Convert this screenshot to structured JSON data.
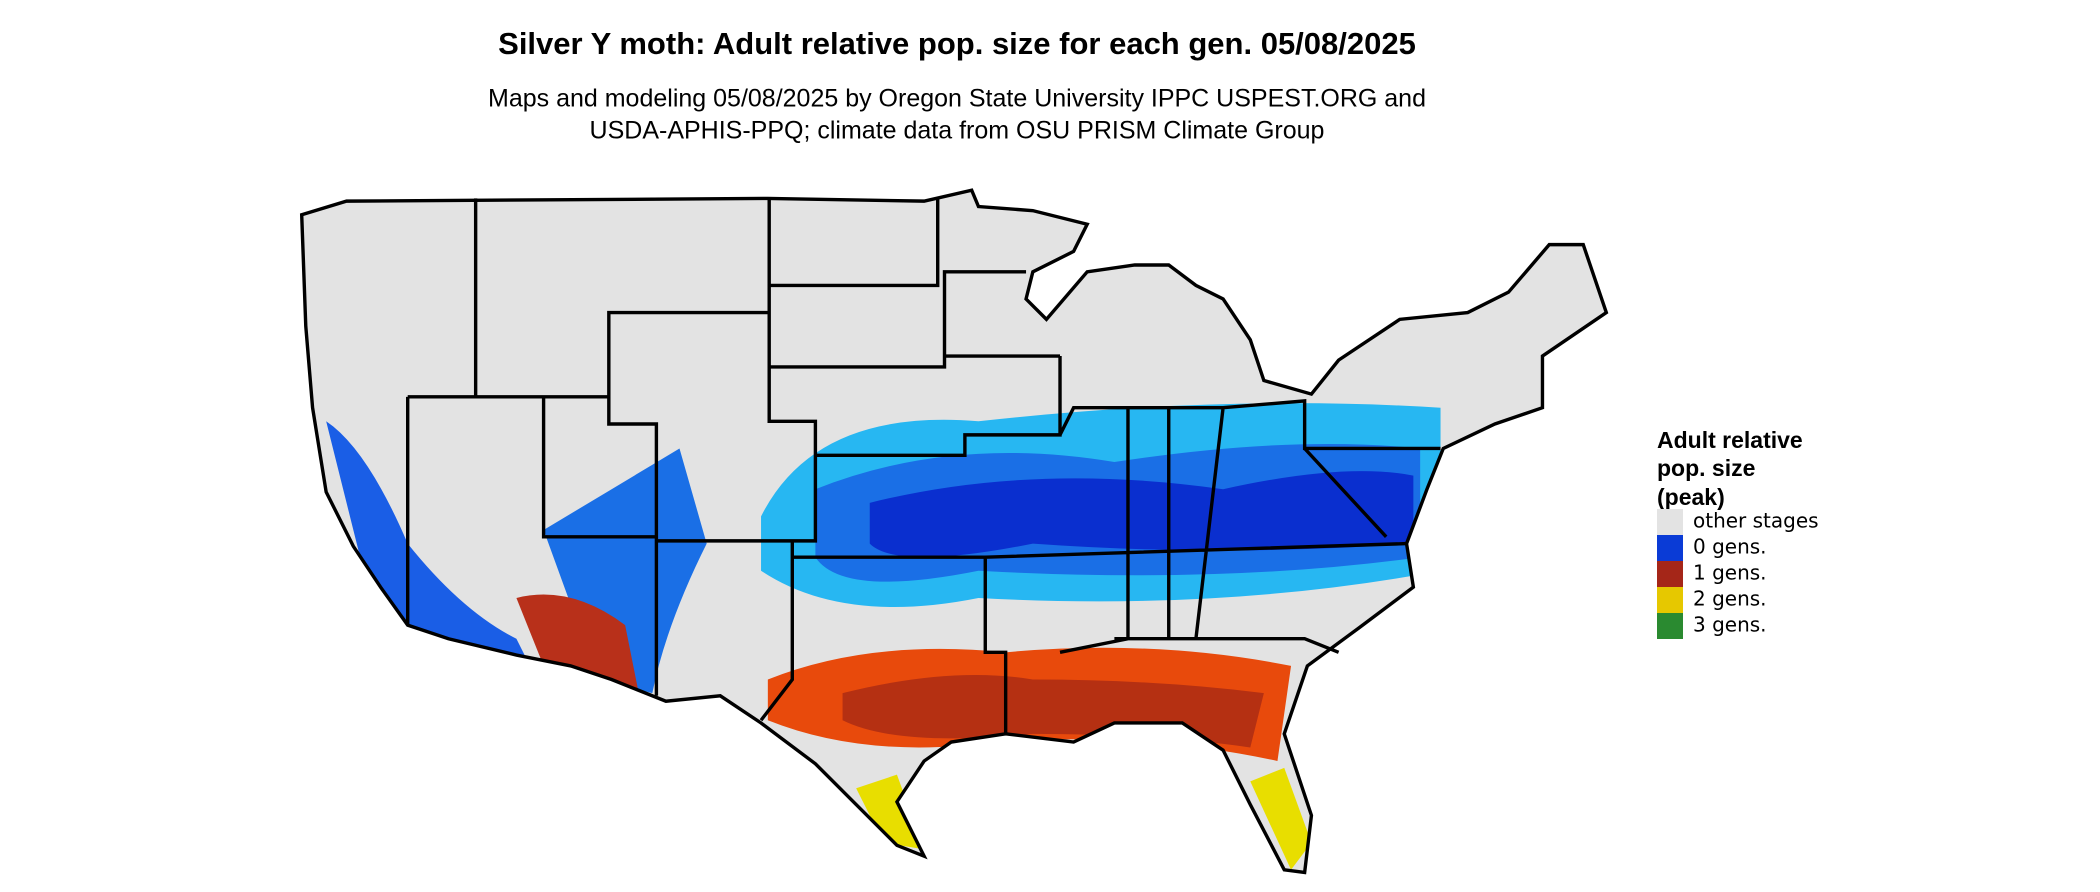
{
  "title": "Silver Y moth: Adult relative pop. size for each gen. 05/08/2025",
  "subtitle": [
    "Maps and modeling 05/08/2025 by Oregon State University IPPC USPEST.ORG and",
    "USDA-APHIS-PPQ; climate data from OSU PRISM Climate Group"
  ],
  "legend": {
    "title": [
      "Adult relative",
      "pop. size",
      "(peak)"
    ],
    "items": [
      {
        "label": "other stages",
        "color": "#e3e3e3"
      },
      {
        "label": "0 gens.",
        "color": "#0a3bd6"
      },
      {
        "label": "1 gens.",
        "color": "#a52618"
      },
      {
        "label": "2 gens.",
        "color": "#e6c800"
      },
      {
        "label": "3 gens.",
        "color": "#2a8a30"
      }
    ]
  }
}
